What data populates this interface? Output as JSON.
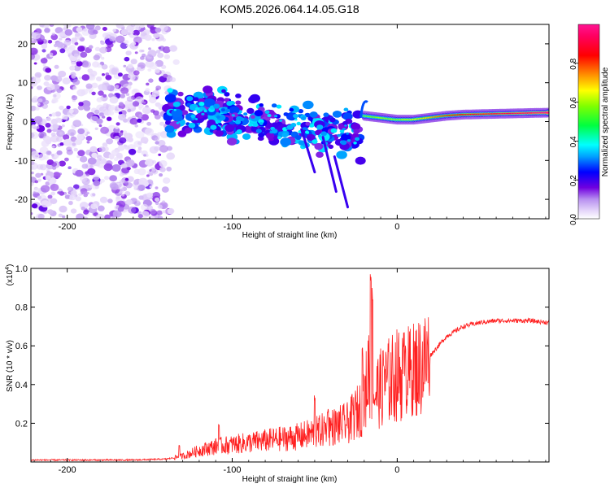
{
  "title": "KOM5.2026.064.14.05.G18",
  "chart_data": [
    {
      "type": "heatmap",
      "name": "spectrogram",
      "xlabel": "Height of straight line (km)",
      "ylabel": "Frequency (Hz)",
      "xlim": [
        -222,
        92
      ],
      "ylim": [
        -25,
        25
      ],
      "xticks": [
        -200,
        -100,
        0
      ],
      "xtick_labels": [
        "-200",
        "-100",
        "0"
      ],
      "yticks": [
        -20,
        -10,
        0,
        10,
        20
      ],
      "ytick_labels": [
        "-20",
        "-10",
        "0",
        "10",
        "20"
      ],
      "noise_region_x": [
        -222,
        -133
      ],
      "features": {
        "line_x": [
          -20,
          -10,
          0,
          10,
          20,
          30,
          40,
          50,
          60,
          70,
          80,
          92
        ],
        "line_y": [
          1.5,
          1.0,
          0.5,
          0.5,
          1.0,
          1.5,
          1.8,
          1.9,
          2.0,
          2.1,
          2.2,
          2.3
        ],
        "line_amp": [
          0.55,
          0.6,
          0.6,
          0.65,
          0.7,
          0.8,
          0.85,
          0.88,
          0.9,
          0.92,
          0.95,
          1.0
        ]
      },
      "colorbar": {
        "label": "Normalized spectral amplitude",
        "range": [
          0.0,
          1.0
        ],
        "ticks": [
          0.0,
          0.2,
          0.4,
          0.6,
          0.8
        ],
        "tick_labels": [
          "0.0",
          "0.2",
          "0.4",
          "0.6",
          "0.8"
        ],
        "colors": [
          "#ffffff",
          "#d8c8f5",
          "#9a55e8",
          "#5a00e0",
          "#0000ff",
          "#00a0ff",
          "#00ffff",
          "#00ff40",
          "#80ff00",
          "#ffff00",
          "#ff8000",
          "#ff0000",
          "#ff0080",
          "#ff1493"
        ]
      }
    },
    {
      "type": "line",
      "name": "snr",
      "xlabel": "Height of straight line (km)",
      "ylabel": "SNR (10 * v/v)",
      "scale_label": "(x10",
      "scale_exp": "4",
      "scale_close": ")",
      "xlim": [
        -222,
        92
      ],
      "ylim": [
        0,
        1.0
      ],
      "xticks": [
        -200,
        -100,
        0
      ],
      "xtick_labels": [
        "-200",
        "-100",
        "0"
      ],
      "yticks": [
        0.2,
        0.4,
        0.6,
        0.8,
        1.0
      ],
      "ytick_labels": [
        "0.2",
        "0.4",
        "0.6",
        "0.8",
        "1.0"
      ],
      "color": "#ff2020",
      "series": [
        {
          "name": "SNR",
          "x": [
            -222,
            -200,
            -180,
            -160,
            -140,
            -130,
            -120,
            -110,
            -100,
            -90,
            -80,
            -70,
            -60,
            -50,
            -40,
            -30,
            -25,
            -20,
            -17,
            -15,
            -10,
            -5,
            0,
            5,
            10,
            15,
            20,
            25,
            30,
            40,
            50,
            60,
            70,
            80,
            92
          ],
          "y": [
            0.01,
            0.01,
            0.01,
            0.01,
            0.015,
            0.03,
            0.06,
            0.08,
            0.09,
            0.1,
            0.11,
            0.12,
            0.13,
            0.15,
            0.18,
            0.2,
            0.25,
            0.3,
            0.5,
            0.35,
            0.38,
            0.42,
            0.45,
            0.45,
            0.47,
            0.5,
            0.55,
            0.6,
            0.65,
            0.7,
            0.72,
            0.73,
            0.73,
            0.73,
            0.72
          ],
          "spikes": [
            [
              -132,
              0.09
            ],
            [
              -108,
              0.2
            ],
            [
              -50,
              0.35
            ],
            [
              -42,
              0.28
            ],
            [
              -27,
              0.3
            ],
            [
              -21,
              0.6
            ],
            [
              -16,
              1.0
            ],
            [
              -15,
              0.92
            ],
            [
              -8,
              0.52
            ],
            [
              5,
              0.62
            ],
            [
              10,
              0.3
            ]
          ]
        }
      ]
    }
  ]
}
